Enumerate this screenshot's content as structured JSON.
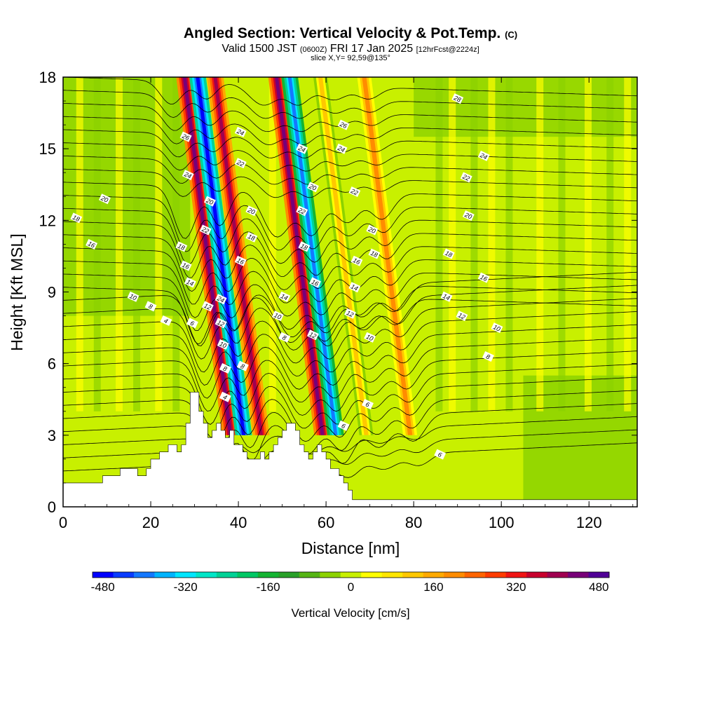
{
  "title": {
    "main": "Angled Section: Vertical Velocity & Pot.Temp.",
    "main_unit": "(C)",
    "valid_prefix": "Valid 1500 JST",
    "valid_z": "(0600Z)",
    "valid_date": "FRI 17 Jan 2025",
    "fcst": "[12hrFcst@2224z]",
    "slice": "slice X,Y= 92,59@135°"
  },
  "chart_data": {
    "type": "heatmap",
    "title": "Angled Section: Vertical Velocity & Pot.Temp. (C)",
    "xlabel": "Distance [nm]",
    "ylabel": "Height [Kft MSL]",
    "xlim": [
      0,
      131
    ],
    "ylim": [
      0,
      18
    ],
    "xticks": [
      0,
      20,
      40,
      60,
      80,
      100,
      120
    ],
    "yticks": [
      0,
      3,
      6,
      9,
      12,
      15,
      18
    ],
    "fill_variable": "Vertical Velocity [cm/s]",
    "contour_variable": "Pot.Temp. (C)",
    "colorbar": {
      "label": "Vertical Velocity [cm/s]",
      "ticks": [
        -480,
        -320,
        -160,
        0,
        160,
        320,
        480
      ],
      "levels": [
        -480,
        -440,
        -400,
        -360,
        -320,
        -280,
        -240,
        -200,
        -160,
        -120,
        -80,
        -40,
        0,
        40,
        80,
        120,
        160,
        200,
        240,
        280,
        320,
        360,
        400,
        440,
        480
      ],
      "colors": [
        "#0000ff",
        "#0a3cff",
        "#1478ff",
        "#00b4ff",
        "#00e6ff",
        "#00e6c8",
        "#00d296",
        "#00c864",
        "#14b432",
        "#28a028",
        "#55b414",
        "#8cd200",
        "#c8f000",
        "#ffff00",
        "#ffe600",
        "#ffc800",
        "#ffaa00",
        "#ff8c00",
        "#ff6400",
        "#ff3c00",
        "#f01414",
        "#c8002d",
        "#a00050",
        "#780078",
        "#500096"
      ]
    },
    "bands": [
      {
        "x": 34,
        "value": 440
      },
      {
        "x": 37,
        "value": -480
      },
      {
        "x": 41,
        "value": 400
      },
      {
        "x": 55,
        "value": 440
      },
      {
        "x": 58,
        "value": -400
      },
      {
        "x": 65,
        "value": 120
      },
      {
        "x": 75,
        "value": 200
      }
    ],
    "terrain": [
      [
        0,
        1
      ],
      [
        9,
        1
      ],
      [
        9,
        1.3
      ],
      [
        13,
        1.3
      ],
      [
        13,
        1.6
      ],
      [
        17,
        1.6
      ],
      [
        17,
        1.3
      ],
      [
        19,
        1.3
      ],
      [
        19,
        1.6
      ],
      [
        20,
        1.6
      ],
      [
        20,
        2.0
      ],
      [
        22,
        2.0
      ],
      [
        22,
        2.3
      ],
      [
        24,
        2.3
      ],
      [
        24,
        2.6
      ],
      [
        26,
        2.6
      ],
      [
        26,
        2.3
      ],
      [
        27,
        2.3
      ],
      [
        27,
        2.6
      ],
      [
        28,
        2.6
      ],
      [
        28,
        3.5
      ],
      [
        29,
        3.5
      ],
      [
        29,
        4.8
      ],
      [
        31,
        4.8
      ],
      [
        31,
        4.0
      ],
      [
        32,
        4.0
      ],
      [
        32,
        3.5
      ],
      [
        33,
        3.5
      ],
      [
        33,
        2.9
      ],
      [
        34,
        2.9
      ],
      [
        34,
        3.2
      ],
      [
        35,
        3.2
      ],
      [
        35,
        3.5
      ],
      [
        36,
        3.5
      ],
      [
        36,
        3.2
      ],
      [
        37,
        3.2
      ],
      [
        37,
        2.9
      ],
      [
        38,
        2.9
      ],
      [
        38,
        3.2
      ],
      [
        39,
        3.2
      ],
      [
        39,
        2.6
      ],
      [
        41,
        2.6
      ],
      [
        41,
        2.3
      ],
      [
        42,
        2.3
      ],
      [
        42,
        2.0
      ],
      [
        45,
        2.0
      ],
      [
        45,
        2.3
      ],
      [
        46,
        2.3
      ],
      [
        46,
        2.0
      ],
      [
        47,
        2.0
      ],
      [
        47,
        2.3
      ],
      [
        48,
        2.3
      ],
      [
        48,
        2.6
      ],
      [
        49,
        2.6
      ],
      [
        49,
        2.9
      ],
      [
        50,
        2.9
      ],
      [
        50,
        3.2
      ],
      [
        51,
        3.2
      ],
      [
        51,
        3.5
      ],
      [
        53,
        3.5
      ],
      [
        53,
        3.2
      ],
      [
        54,
        3.2
      ],
      [
        54,
        2.6
      ],
      [
        55,
        2.6
      ],
      [
        55,
        2.3
      ],
      [
        56,
        2.3
      ],
      [
        56,
        2.0
      ],
      [
        57,
        2.0
      ],
      [
        57,
        2.3
      ],
      [
        58,
        2.3
      ],
      [
        58,
        2.6
      ],
      [
        59,
        2.6
      ],
      [
        59,
        2.3
      ],
      [
        60,
        2.3
      ],
      [
        60,
        2.0
      ],
      [
        61,
        2.0
      ],
      [
        61,
        1.6
      ],
      [
        63,
        1.6
      ],
      [
        63,
        1.3
      ],
      [
        64,
        1.3
      ],
      [
        64,
        1.0
      ],
      [
        65,
        1.0
      ],
      [
        65,
        0.7
      ],
      [
        66,
        0.7
      ],
      [
        66,
        0.3
      ],
      [
        131,
        0.3
      ]
    ],
    "contour_labels": [
      {
        "text": "28",
        "x": 90,
        "y": 17.1
      },
      {
        "text": "26",
        "x": 64,
        "y": 16.0
      },
      {
        "text": "24",
        "x": 40.5,
        "y": 15.7
      },
      {
        "text": "24",
        "x": 54.5,
        "y": 15.0
      },
      {
        "text": "24",
        "x": 63.5,
        "y": 15.0
      },
      {
        "text": "24",
        "x": 96,
        "y": 14.7
      },
      {
        "text": "26",
        "x": 28,
        "y": 15.5
      },
      {
        "text": "22",
        "x": 40.5,
        "y": 14.4
      },
      {
        "text": "22",
        "x": 66.5,
        "y": 13.2
      },
      {
        "text": "22",
        "x": 92,
        "y": 13.8
      },
      {
        "text": "24",
        "x": 28.5,
        "y": 13.9
      },
      {
        "text": "20",
        "x": 33.5,
        "y": 12.8
      },
      {
        "text": "20",
        "x": 43,
        "y": 12.4
      },
      {
        "text": "22",
        "x": 54.5,
        "y": 12.4
      },
      {
        "text": "20",
        "x": 57,
        "y": 13.4
      },
      {
        "text": "20",
        "x": 70.5,
        "y": 11.6
      },
      {
        "text": "20",
        "x": 92.5,
        "y": 12.2
      },
      {
        "text": "20",
        "x": 9.5,
        "y": 12.9
      },
      {
        "text": "22",
        "x": 32.5,
        "y": 11.6
      },
      {
        "text": "18",
        "x": 3,
        "y": 12.1
      },
      {
        "text": "18",
        "x": 43,
        "y": 11.3
      },
      {
        "text": "18",
        "x": 55,
        "y": 10.9
      },
      {
        "text": "18",
        "x": 71,
        "y": 10.6
      },
      {
        "text": "18",
        "x": 88,
        "y": 10.6
      },
      {
        "text": "18",
        "x": 27,
        "y": 10.9
      },
      {
        "text": "16",
        "x": 6.5,
        "y": 11.0
      },
      {
        "text": "16",
        "x": 40.5,
        "y": 10.3
      },
      {
        "text": "16",
        "x": 67,
        "y": 10.3
      },
      {
        "text": "16",
        "x": 96,
        "y": 9.6
      },
      {
        "text": "16",
        "x": 28,
        "y": 10.1
      },
      {
        "text": "14",
        "x": 29,
        "y": 9.4
      },
      {
        "text": "16",
        "x": 57.5,
        "y": 9.4
      },
      {
        "text": "14",
        "x": 50.5,
        "y": 8.8
      },
      {
        "text": "14",
        "x": 66.5,
        "y": 9.2
      },
      {
        "text": "14",
        "x": 87.5,
        "y": 8.8
      },
      {
        "text": "12",
        "x": 33,
        "y": 8.4
      },
      {
        "text": "24",
        "x": 36,
        "y": 8.7
      },
      {
        "text": "10",
        "x": 16,
        "y": 8.8
      },
      {
        "text": "8",
        "x": 20,
        "y": 8.4
      },
      {
        "text": "10",
        "x": 49,
        "y": 8.0
      },
      {
        "text": "12",
        "x": 65.5,
        "y": 8.1
      },
      {
        "text": "12",
        "x": 91,
        "y": 8.0
      },
      {
        "text": "4",
        "x": 23.5,
        "y": 7.8
      },
      {
        "text": "6",
        "x": 29.5,
        "y": 7.7
      },
      {
        "text": "12",
        "x": 36,
        "y": 7.7
      },
      {
        "text": "8",
        "x": 50.5,
        "y": 7.1
      },
      {
        "text": "12",
        "x": 57,
        "y": 7.2
      },
      {
        "text": "10",
        "x": 70,
        "y": 7.1
      },
      {
        "text": "10",
        "x": 99,
        "y": 7.5
      },
      {
        "text": "10",
        "x": 36.5,
        "y": 6.8
      },
      {
        "text": "8",
        "x": 37,
        "y": 5.8
      },
      {
        "text": "8",
        "x": 41,
        "y": 5.9
      },
      {
        "text": "8",
        "x": 97,
        "y": 6.3
      },
      {
        "text": "4",
        "x": 37,
        "y": 4.6
      },
      {
        "text": "6",
        "x": 69.5,
        "y": 4.3
      },
      {
        "text": "6",
        "x": 64,
        "y": 3.4
      },
      {
        "text": "6",
        "x": 86,
        "y": 2.2
      }
    ]
  }
}
